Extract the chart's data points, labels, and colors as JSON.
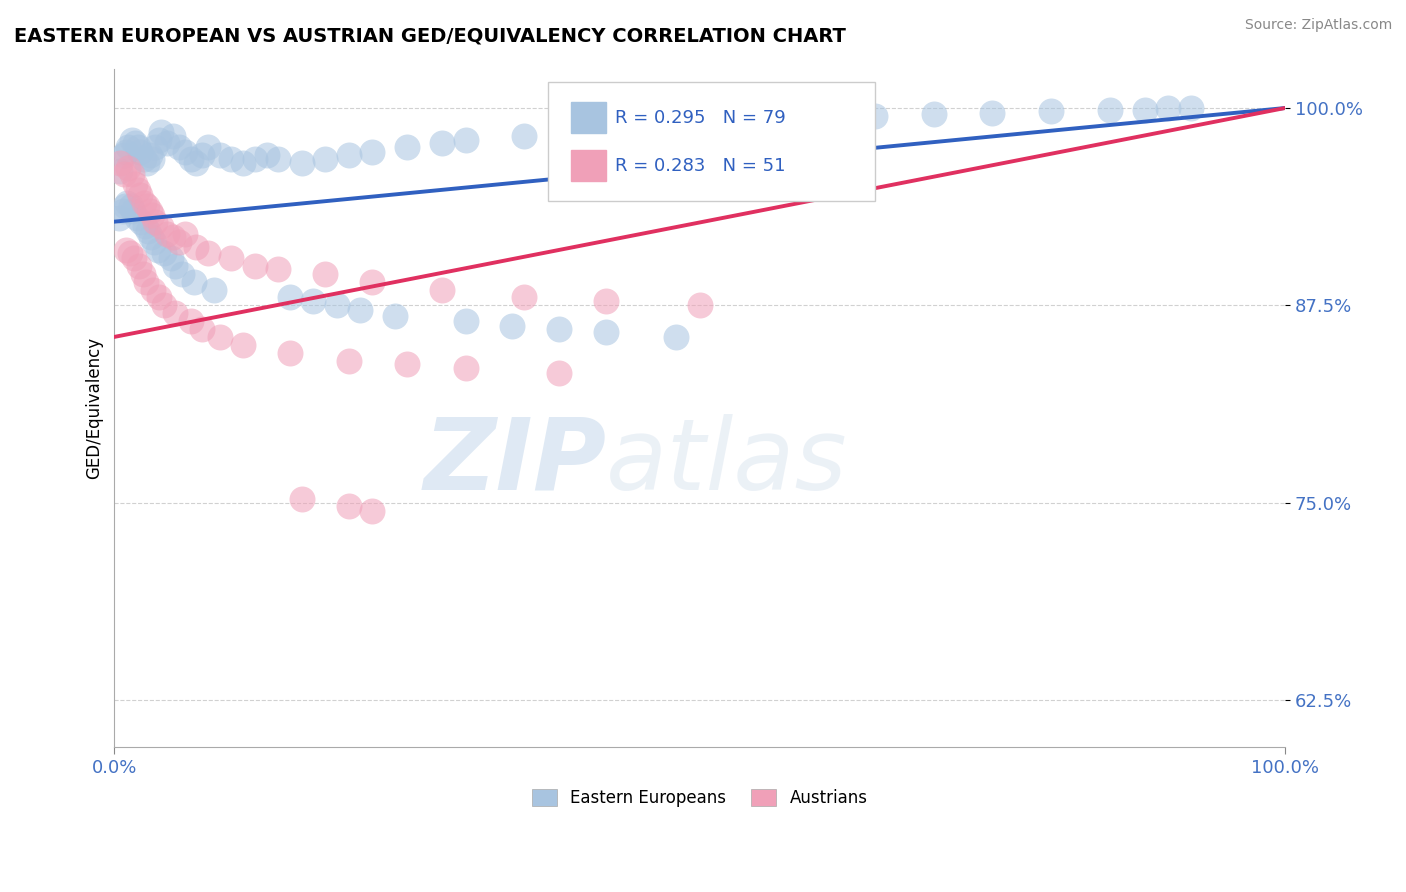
{
  "title": "EASTERN EUROPEAN VS AUSTRIAN GED/EQUIVALENCY CORRELATION CHART",
  "source": "Source: ZipAtlas.com",
  "ylabel": "GED/Equivalency",
  "yticks": [
    0.625,
    0.75,
    0.875,
    1.0
  ],
  "ytick_labels": [
    "62.5%",
    "75.0%",
    "87.5%",
    "100.0%"
  ],
  "legend_labels": [
    "Eastern Europeans",
    "Austrians"
  ],
  "legend_r": [
    "R = 0.295",
    "R = 0.283"
  ],
  "legend_n": [
    "N = 79",
    "N = 51"
  ],
  "blue_color": "#a8c4e0",
  "pink_color": "#f0a0b8",
  "blue_line_color": "#3060c0",
  "pink_line_color": "#e03060",
  "blue_scatter": {
    "x": [
      0.5,
      0.8,
      1.0,
      1.2,
      1.5,
      1.8,
      2.0,
      2.2,
      2.5,
      2.8,
      3.0,
      3.2,
      3.5,
      3.8,
      4.0,
      4.5,
      5.0,
      5.5,
      6.0,
      6.5,
      7.0,
      7.5,
      8.0,
      9.0,
      10.0,
      11.0,
      12.0,
      13.0,
      14.0,
      16.0,
      18.0,
      20.0,
      22.0,
      25.0,
      28.0,
      30.0,
      35.0,
      40.0,
      45.0,
      50.0,
      55.0,
      60.0,
      65.0,
      70.0,
      75.0,
      80.0,
      85.0,
      88.0,
      90.0,
      92.0,
      0.4,
      0.7,
      0.9,
      1.1,
      1.4,
      1.6,
      1.9,
      2.3,
      2.6,
      2.9,
      3.1,
      3.4,
      3.7,
      4.2,
      4.8,
      5.2,
      5.8,
      6.8,
      8.5,
      15.0,
      17.0,
      19.0,
      21.0,
      24.0,
      30.0,
      34.0,
      38.0,
      42.0,
      48.0
    ],
    "y": [
      0.96,
      0.97,
      0.972,
      0.975,
      0.98,
      0.978,
      0.975,
      0.972,
      0.968,
      0.965,
      0.97,
      0.968,
      0.975,
      0.98,
      0.985,
      0.978,
      0.982,
      0.975,
      0.972,
      0.968,
      0.965,
      0.97,
      0.975,
      0.97,
      0.968,
      0.965,
      0.968,
      0.97,
      0.968,
      0.965,
      0.968,
      0.97,
      0.972,
      0.975,
      0.978,
      0.98,
      0.982,
      0.985,
      0.988,
      0.99,
      0.992,
      0.993,
      0.995,
      0.996,
      0.997,
      0.998,
      0.999,
      0.999,
      1.0,
      1.0,
      0.93,
      0.935,
      0.938,
      0.94,
      0.938,
      0.935,
      0.93,
      0.928,
      0.925,
      0.922,
      0.918,
      0.915,
      0.91,
      0.908,
      0.905,
      0.9,
      0.895,
      0.89,
      0.885,
      0.88,
      0.878,
      0.875,
      0.872,
      0.868,
      0.865,
      0.862,
      0.86,
      0.858,
      0.855
    ]
  },
  "pink_scatter": {
    "x": [
      0.5,
      0.8,
      1.2,
      1.5,
      1.8,
      2.0,
      2.2,
      2.5,
      2.8,
      3.0,
      3.2,
      3.5,
      4.0,
      4.5,
      5.0,
      5.5,
      6.0,
      7.0,
      8.0,
      10.0,
      12.0,
      14.0,
      18.0,
      22.0,
      28.0,
      35.0,
      42.0,
      50.0,
      1.0,
      1.3,
      1.7,
      2.1,
      2.4,
      2.7,
      3.3,
      3.8,
      4.2,
      5.2,
      6.5,
      7.5,
      9.0,
      11.0,
      15.0,
      20.0,
      25.0,
      30.0,
      38.0,
      16.0,
      20.0,
      22.0
    ],
    "y": [
      0.965,
      0.958,
      0.962,
      0.958,
      0.952,
      0.948,
      0.945,
      0.94,
      0.938,
      0.935,
      0.932,
      0.928,
      0.925,
      0.92,
      0.918,
      0.915,
      0.92,
      0.912,
      0.908,
      0.905,
      0.9,
      0.898,
      0.895,
      0.89,
      0.885,
      0.88,
      0.878,
      0.875,
      0.91,
      0.908,
      0.905,
      0.9,
      0.895,
      0.89,
      0.885,
      0.88,
      0.875,
      0.87,
      0.865,
      0.86,
      0.855,
      0.85,
      0.845,
      0.84,
      0.838,
      0.835,
      0.832,
      0.752,
      0.748,
      0.745
    ]
  },
  "blue_line": {
    "x0": 0.0,
    "x1": 100.0,
    "y0": 0.928,
    "y1": 1.0
  },
  "pink_line": {
    "x0": 0.0,
    "x1": 100.0,
    "y0": 0.855,
    "y1": 1.0
  },
  "watermark_zip": "ZIP",
  "watermark_atlas": "atlas",
  "background_color": "#ffffff",
  "grid_color": "#cccccc",
  "xlim": [
    0,
    100
  ],
  "ylim": [
    0.595,
    1.025
  ]
}
